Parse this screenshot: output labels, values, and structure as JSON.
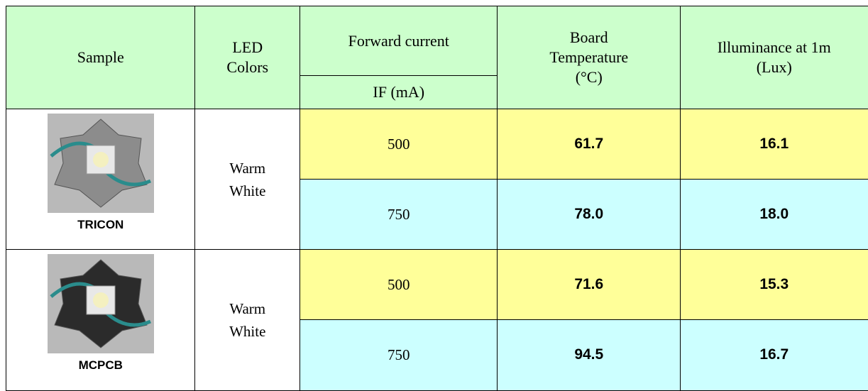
{
  "header": {
    "sample": "Sample",
    "led_colors": [
      "LED",
      "Colors"
    ],
    "forward_current": "Forward current",
    "forward_current_unit": "IF (mA)",
    "board_temperature": [
      "Board",
      "Temperature",
      "(°C)"
    ],
    "illuminance": [
      "Illuminance at 1m",
      "(Lux)"
    ]
  },
  "samples": [
    {
      "name": "TRICON",
      "led_color": [
        "Warm",
        "White"
      ],
      "measurements": [
        {
          "forward_current": 500,
          "board_temperature": "61.7",
          "illuminance": "16.1"
        },
        {
          "forward_current": 750,
          "board_temperature": "78.0",
          "illuminance": "18.0"
        }
      ]
    },
    {
      "name": "MCPCB",
      "led_color": [
        "Warm",
        "White"
      ],
      "measurements": [
        {
          "forward_current": 500,
          "board_temperature": "71.6",
          "illuminance": "15.3"
        },
        {
          "forward_current": 750,
          "board_temperature": "94.5",
          "illuminance": "16.7"
        }
      ]
    }
  ]
}
